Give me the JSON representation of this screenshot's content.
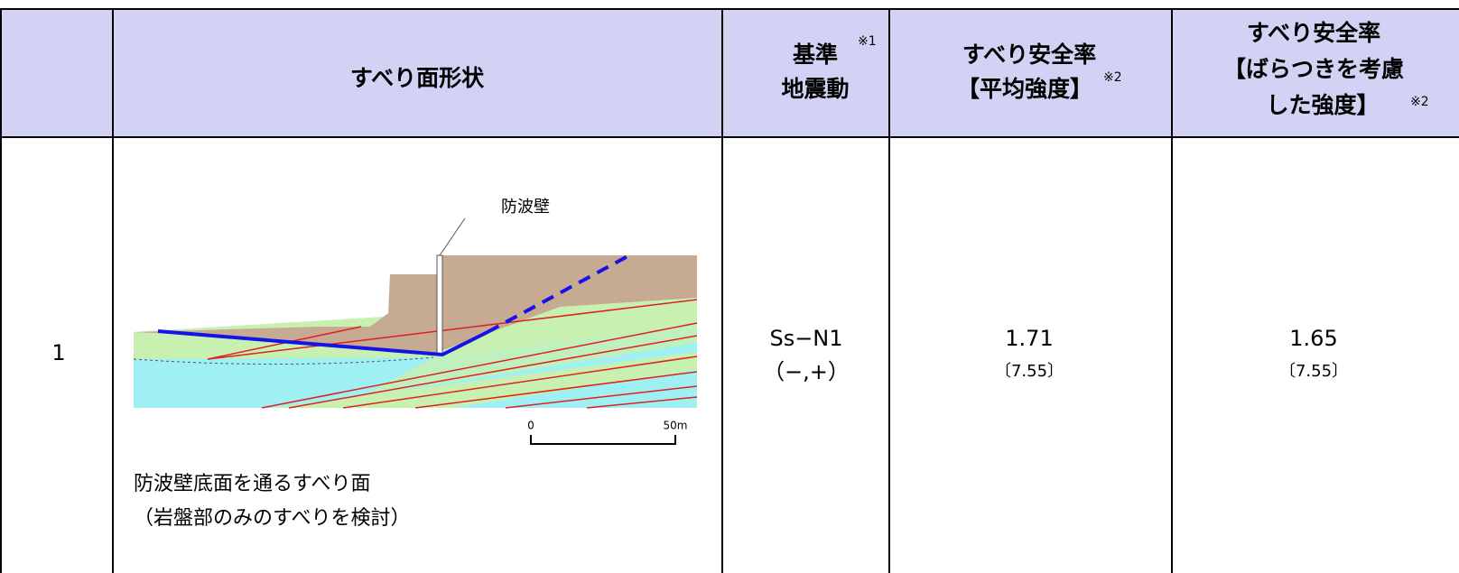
{
  "table": {
    "header": [
      {
        "text": "すべり面形状"
      },
      {
        "lines": [
          "基準",
          "地震動"
        ],
        "note": "※1"
      },
      {
        "lines": [
          "すべり安全率",
          "【平均強度】"
        ],
        "note": "※2"
      },
      {
        "lines": [
          "すべり安全率",
          "【ばらつきを考慮",
          "した強度】"
        ],
        "note": "※2"
      }
    ],
    "rows": [
      {
        "no": "1",
        "figure": {
          "label": "防波壁",
          "scale": [
            "0",
            "50m"
          ]
        },
        "caption": [
          "防波壁底面を通るすべり面",
          "（岩盤部のみのすべりを検討）"
        ],
        "motion": [
          "Ss−N1",
          "（−,+）"
        ],
        "mean": [
          "1.71",
          "〔7.55〕"
        ],
        "varied": [
          "1.65",
          "〔7.55〕"
        ]
      }
    ]
  }
}
